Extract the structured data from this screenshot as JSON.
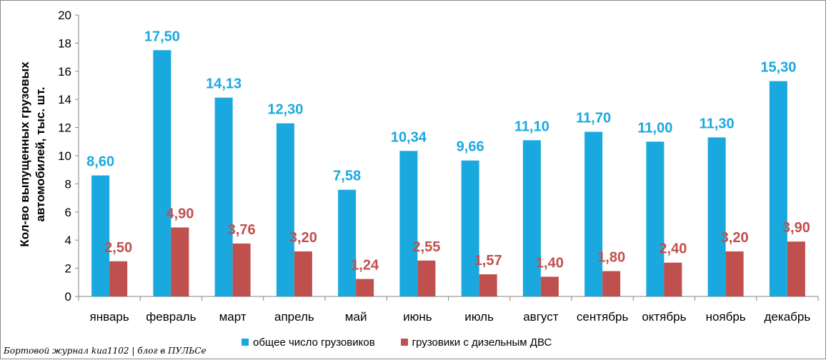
{
  "chart_data": {
    "type": "bar",
    "categories": [
      "январь",
      "февраль",
      "март",
      "апрель",
      "май",
      "июнь",
      "июль",
      "август",
      "сентябрь",
      "октябрь",
      "ноябрь",
      "декабрь"
    ],
    "series": [
      {
        "name": "общее число грузовиков",
        "color": "#1aa9de",
        "values": [
          8.6,
          17.5,
          14.13,
          12.3,
          7.58,
          10.34,
          9.66,
          11.1,
          11.7,
          11.0,
          11.3,
          15.3
        ],
        "labels": [
          "8,60",
          "17,50",
          "14,13",
          "12,30",
          "7,58",
          "10,34",
          "9,66",
          "11,10",
          "11,70",
          "11,00",
          "11,30",
          "15,30"
        ]
      },
      {
        "name": "грузовики с дизельным ДВС",
        "color": "#c0504d",
        "values": [
          2.5,
          4.9,
          3.76,
          3.2,
          1.24,
          2.55,
          1.57,
          1.4,
          1.8,
          2.4,
          3.2,
          3.9
        ],
        "labels": [
          "2,50",
          "4,90",
          "3,76",
          "3,20",
          "1,24",
          "2,55",
          "1,57",
          "1,40",
          "1,80",
          "2,40",
          "3,20",
          "3,90"
        ]
      }
    ],
    "ylabel_lines": [
      "Кол-во выпущенных грузовых",
      "автомобилей, тыс. шт."
    ],
    "ylim": [
      0,
      20
    ],
    "yticks": [
      0,
      2,
      4,
      6,
      8,
      10,
      12,
      14,
      16,
      18,
      20
    ],
    "grid": false,
    "legend_position": "bottom"
  },
  "watermark": "Бортовой журнал kиа1102 | блог в ПУЛЬСе"
}
